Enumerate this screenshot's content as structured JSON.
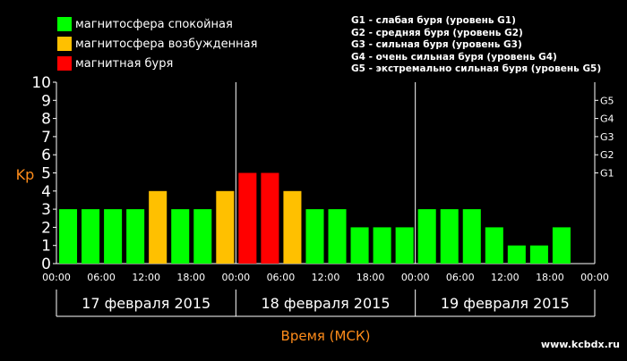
{
  "legend": {
    "items": [
      {
        "label": "магнитосфера спокойная",
        "color": "#00FF00"
      },
      {
        "label": "магнитосфера возбужденная",
        "color": "#FFC000"
      },
      {
        "label": "магнитная буря",
        "color": "#FF0000"
      }
    ],
    "g_lines": [
      "G1 - слабая буря (уровень G1)",
      "G2 - средняя буря (уровень G2)",
      "G3 - сильная буря (уровень G3)",
      "G4 - очень сильная буря (уровень G4)",
      "G5 - экстремально сильная буря (уровень G5)"
    ]
  },
  "chart_data": {
    "type": "bar",
    "ylabel": "Kp",
    "xlabel": "Время (МСК)",
    "ylim": [
      0,
      10
    ],
    "y_ticks": [
      "0",
      "1",
      "2",
      "3",
      "4",
      "5",
      "6",
      "7",
      "8",
      "9",
      "10"
    ],
    "g_ticks": [
      {
        "label": "G1",
        "value": 5
      },
      {
        "label": "G2",
        "value": 6
      },
      {
        "label": "G3",
        "value": 7
      },
      {
        "label": "G4",
        "value": 8
      },
      {
        "label": "G5",
        "value": 9
      }
    ],
    "time_ticks": [
      "00:00",
      "06:00",
      "12:00",
      "18:00",
      "00:00",
      "06:00",
      "12:00",
      "18:00",
      "00:00",
      "06:00",
      "12:00",
      "18:00",
      "00:00"
    ],
    "days": [
      "17 февраля 2015",
      "18 февраля 2015",
      "19 февраля 2015"
    ],
    "values": [
      3,
      3,
      3,
      3,
      4,
      3,
      3,
      4,
      5,
      5,
      4,
      3,
      3,
      2,
      2,
      2,
      3,
      3,
      3,
      2,
      1,
      1,
      2
    ],
    "colors": {
      "quiet": "#00FF00",
      "active": "#FFC000",
      "storm": "#FF0000"
    },
    "grid": true
  },
  "site": "www.kcbdx.ru"
}
